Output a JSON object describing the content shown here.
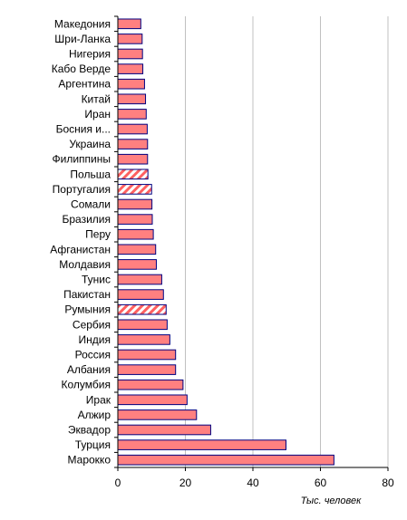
{
  "chart_data": {
    "type": "bar",
    "orientation": "horizontal",
    "categories": [
      "Македония",
      "Шри-Ланка",
      "Нигерия",
      "Кабо Верде",
      "Аргентина",
      "Китай",
      "Иран",
      "Босния и...",
      "Украина",
      "Филиппины",
      "Польша",
      "Португалия",
      "Сомали",
      "Бразилия",
      "Перу",
      "Афганистан",
      "Молдавия",
      "Тунис",
      "Пакистан",
      "Румыния",
      "Сербия",
      "Индия",
      "Россия",
      "Албания",
      "Колумбия",
      "Ирак",
      "Алжир",
      "Эквадор",
      "Турция",
      "Марокко"
    ],
    "values": [
      6.8,
      7.2,
      7.3,
      7.4,
      7.9,
      8.2,
      8.4,
      8.7,
      8.8,
      8.8,
      8.9,
      10.0,
      10.1,
      10.2,
      10.5,
      11.2,
      11.4,
      13.0,
      13.5,
      14.3,
      14.6,
      15.4,
      17.1,
      17.1,
      19.3,
      20.5,
      23.3,
      27.5,
      49.8,
      64.0
    ],
    "patterned": [
      "Польша",
      "Португалия",
      "Румыния"
    ],
    "xlabel": "Тыс. человек",
    "xlim": [
      0,
      80
    ],
    "xticks": [
      0,
      20,
      40,
      60,
      80
    ],
    "grid": true,
    "colors": {
      "bar": "#ff8080",
      "border": "#000080",
      "grid": "#c0c0c0",
      "hatch": "#ff6060"
    }
  }
}
